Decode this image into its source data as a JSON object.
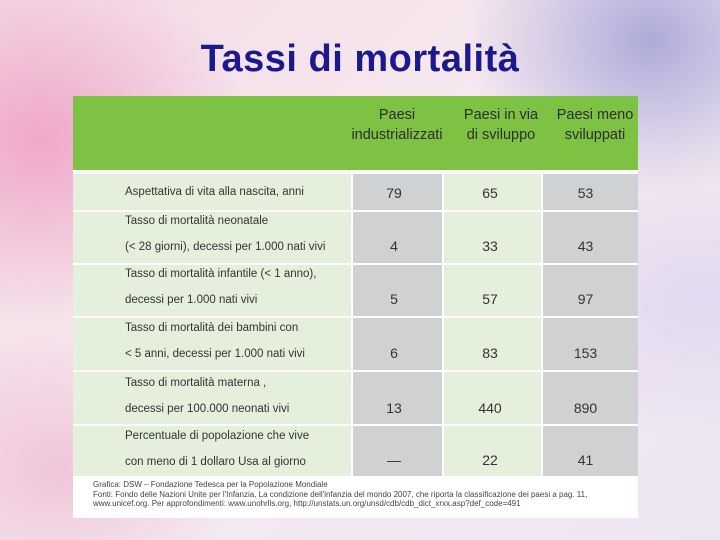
{
  "slide": {
    "title": "Tassi di mortalità"
  },
  "table": {
    "headers": [
      "Paesi\nindustrializzati",
      "Paesi in via\ndi sviluppo",
      "Paesi meno\nsviluppati"
    ],
    "rows": [
      {
        "label": "Aspettativa di vita alla nascita, anni",
        "values": [
          "79",
          "65",
          "53"
        ]
      },
      {
        "label": "Tasso di mortalità neonatale\n(< 28 giorni), decessi per 1.000 nati vivi",
        "values": [
          "4",
          "33",
          "43"
        ]
      },
      {
        "label": "Tasso di mortalità infantile (< 1 anno),\ndecessi per 1.000 nati vivi",
        "values": [
          "5",
          "57",
          "97"
        ]
      },
      {
        "label": "Tasso di mortalità dei bambini con\n< 5 anni, decessi per 1.000 nati vivi",
        "values": [
          "6",
          "83",
          "153"
        ]
      },
      {
        "label": "Tasso di mortalità materna ,\ndecessi per 100.000 neonati vivi",
        "values": [
          "13",
          "440",
          "890"
        ]
      },
      {
        "label": "Percentuale di popolazione che vive\ncon meno di 1 dollaro Usa al giorno",
        "values": [
          "—",
          "22",
          "41"
        ]
      }
    ],
    "footnote": [
      "Grafica: DSW – Fondazione Tedesca per la Popolazione Mondiale",
      "Fonti: Fondo delle Nazioni Unite per l'Infanzia, La condizione dell'infanzia del mondo 2007, che riporta la classificazione dei paesi a pag. 11,",
      "www.unicef.org. Per approfondimenti: www.unohrlls.org, http://unstats.un.org/unsd/cdb/cdb_dict_xrxx.asp?def_code=491"
    ]
  },
  "colors": {
    "header_green": "#7dc242",
    "title_blue": "#1a1a8c",
    "light_green": "#e4f0dc",
    "gray": "#cfd1d3"
  }
}
